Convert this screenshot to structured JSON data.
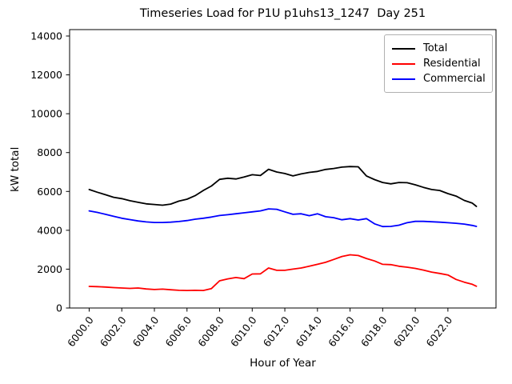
{
  "chart_data": {
    "type": "line",
    "title": "Timeseries Load for P1U p1uhs13_1247  Day 251",
    "xlabel": "Hour of Year",
    "ylabel": "kW total",
    "grid": false,
    "legend_position": "upper right",
    "xlim": [
      5998.8,
      6024.95
    ],
    "ylim": [
      0,
      14330
    ],
    "x_tick_labels": [
      "6000.0",
      "6002.0",
      "6004.0",
      "6006.0",
      "6008.0",
      "6010.0",
      "6012.0",
      "6014.0",
      "6016.0",
      "6018.0",
      "6020.0",
      "6022.0"
    ],
    "y_tick_labels": [
      "0",
      "2000",
      "4000",
      "6000",
      "8000",
      "10000",
      "12000",
      "14000"
    ],
    "x": [
      6000,
      6000.5,
      6001,
      6001.5,
      6002,
      6002.5,
      6003,
      6003.5,
      6004,
      6004.5,
      6005,
      6005.5,
      6006,
      6006.5,
      6007,
      6007.5,
      6008,
      6008.5,
      6009,
      6009.5,
      6010,
      6010.5,
      6011,
      6011.5,
      6012,
      6012.5,
      6013,
      6013.5,
      6014,
      6014.5,
      6015,
      6015.5,
      6016,
      6016.5,
      6017,
      6017.5,
      6018,
      6018.5,
      6019,
      6019.5,
      6020,
      6020.5,
      6021,
      6021.5,
      6022,
      6022.5,
      6023,
      6023.5,
      6023.75
    ],
    "series": [
      {
        "name": "Total",
        "color": "#000000",
        "values": [
          6100,
          5960,
          5830,
          5700,
          5630,
          5520,
          5440,
          5360,
          5330,
          5290,
          5350,
          5500,
          5600,
          5780,
          6050,
          6280,
          6620,
          6680,
          6640,
          6740,
          6860,
          6820,
          7140,
          7000,
          6920,
          6800,
          6900,
          6980,
          7030,
          7130,
          7180,
          7250,
          7280,
          7270,
          6800,
          6610,
          6460,
          6390,
          6460,
          6450,
          6340,
          6210,
          6100,
          6050,
          5890,
          5760,
          5540,
          5400,
          5230
        ]
      },
      {
        "name": "Residential",
        "color": "#ff0000",
        "values": [
          1110,
          1100,
          1080,
          1050,
          1030,
          1010,
          1030,
          980,
          950,
          970,
          940,
          910,
          900,
          910,
          900,
          1000,
          1400,
          1500,
          1570,
          1510,
          1750,
          1760,
          2060,
          1940,
          1940,
          2000,
          2060,
          2150,
          2250,
          2350,
          2500,
          2650,
          2740,
          2700,
          2550,
          2420,
          2250,
          2230,
          2150,
          2100,
          2040,
          1950,
          1850,
          1780,
          1700,
          1470,
          1330,
          1220,
          1120
        ]
      },
      {
        "name": "Commercial",
        "color": "#0000ff",
        "values": [
          5000,
          4920,
          4820,
          4720,
          4620,
          4550,
          4480,
          4430,
          4400,
          4400,
          4420,
          4450,
          4500,
          4570,
          4620,
          4680,
          4760,
          4800,
          4850,
          4900,
          4950,
          5000,
          5100,
          5080,
          4950,
          4820,
          4850,
          4750,
          4850,
          4700,
          4650,
          4540,
          4600,
          4530,
          4600,
          4330,
          4190,
          4200,
          4260,
          4390,
          4460,
          4460,
          4440,
          4420,
          4390,
          4360,
          4320,
          4250,
          4200
        ]
      }
    ]
  }
}
